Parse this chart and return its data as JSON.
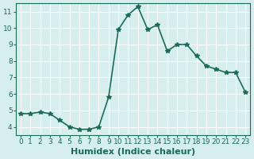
{
  "x": [
    0,
    1,
    2,
    3,
    4,
    5,
    6,
    7,
    8,
    9,
    10,
    11,
    12,
    13,
    14,
    15,
    16,
    17,
    18,
    19,
    20,
    21,
    22,
    23
  ],
  "y": [
    4.8,
    4.8,
    4.9,
    4.8,
    4.4,
    4.0,
    3.85,
    3.85,
    4.0,
    5.8,
    9.9,
    10.8,
    11.3,
    9.9,
    10.2,
    8.6,
    9.0,
    9.0,
    8.3,
    7.7,
    7.5,
    7.3,
    7.3,
    6.1
  ],
  "line_color": "#1a6b5a",
  "marker": "*",
  "marker_size": 4,
  "bg_color": "#d6eeee",
  "grid_color": "#ffffff",
  "xlabel": "Humidex (Indice chaleur)",
  "xlim": [
    -0.5,
    23.5
  ],
  "ylim": [
    3.5,
    11.5
  ],
  "yticks": [
    4,
    5,
    6,
    7,
    8,
    9,
    10,
    11
  ],
  "xticks": [
    0,
    1,
    2,
    3,
    4,
    5,
    6,
    7,
    8,
    9,
    10,
    11,
    12,
    13,
    14,
    15,
    16,
    17,
    18,
    19,
    20,
    21,
    22,
    23
  ],
  "tick_label_size": 6.5,
  "xlabel_size": 8,
  "line_width": 1.2
}
